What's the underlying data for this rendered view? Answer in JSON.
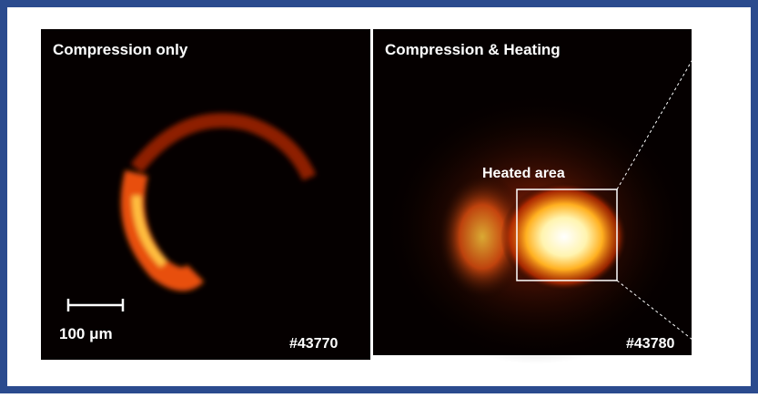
{
  "panels": [
    {
      "title": "Compression only",
      "scale_label": "100 μm",
      "shot": "#43770"
    },
    {
      "title": "Compression & Heating",
      "annotation": "Heated area",
      "shot": "#43780"
    }
  ]
}
